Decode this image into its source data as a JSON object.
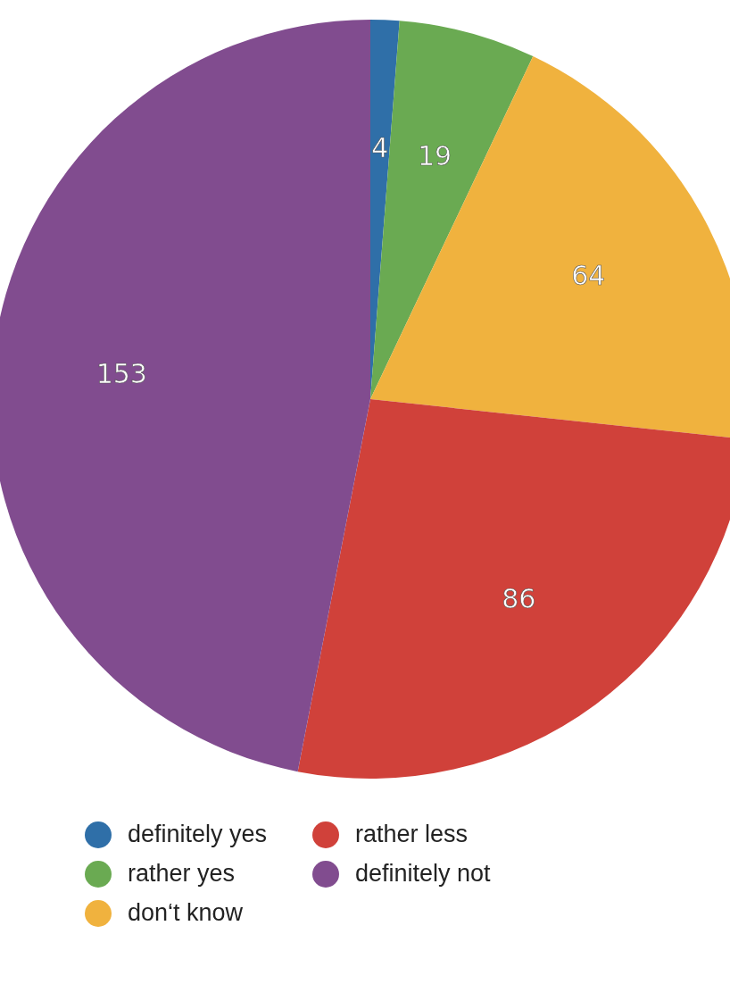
{
  "chart_data": {
    "type": "pie",
    "categories": [
      "definitely yes",
      "rather yes",
      "don‘t know",
      "rather less",
      "definitely not"
    ],
    "values": [
      4,
      19,
      64,
      86,
      153
    ],
    "colors": [
      "#2f6fa8",
      "#6aaa52",
      "#f0b23e",
      "#d0413a",
      "#814c8f"
    ],
    "data_labels": true,
    "legend": "bottom"
  }
}
